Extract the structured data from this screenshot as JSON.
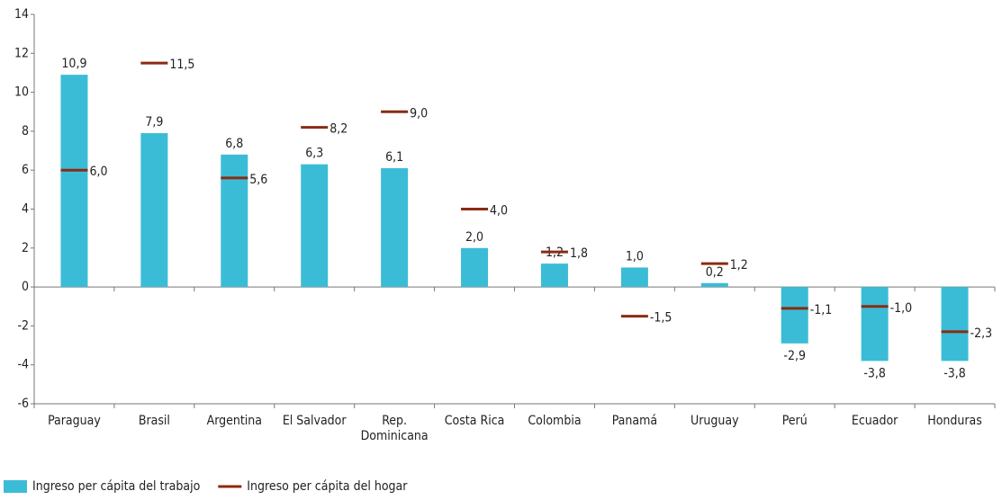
{
  "chart_data": {
    "type": "bar",
    "categories": [
      "Paraguay",
      "Brasil",
      "Argentina",
      "El Salvador",
      "Rep.\nDominicana",
      "Costa Rica",
      "Colombia",
      "Panamá",
      "Uruguay",
      "Perú",
      "Ecuador",
      "Honduras"
    ],
    "series": [
      {
        "name": "Ingreso per cápita del trabajo",
        "color": "#3bbcd6",
        "marker": "bar",
        "values": [
          10.9,
          7.9,
          6.8,
          6.3,
          6.1,
          2.0,
          1.2,
          1.0,
          0.2,
          -2.9,
          -3.8,
          -3.8
        ],
        "value_labels": [
          "10,9",
          "7,9",
          "6,8",
          "6,3",
          "6,1",
          "2,0",
          "1,2",
          "1,0",
          "0,2",
          "-2,9",
          "-3,8",
          "-3,8"
        ]
      },
      {
        "name": "Ingreso per cápita del hogar",
        "color": "#8b2b12",
        "marker": "dash",
        "values": [
          6.0,
          11.5,
          5.6,
          8.2,
          9.0,
          4.0,
          1.8,
          -1.5,
          1.2,
          -1.1,
          -1.0,
          -2.3
        ],
        "value_labels": [
          "6,0",
          "11,5",
          "5,6",
          "8,2",
          "9,0",
          "4,0",
          "1,8",
          "-1,5",
          "1,2",
          "-1,1",
          "-1,0",
          "-2,3"
        ]
      }
    ],
    "ylim": [
      -6,
      14
    ],
    "yticks": [
      -6,
      -4,
      -2,
      0,
      2,
      4,
      6,
      8,
      10,
      12,
      14
    ],
    "grid": false,
    "legend": "bottom"
  }
}
